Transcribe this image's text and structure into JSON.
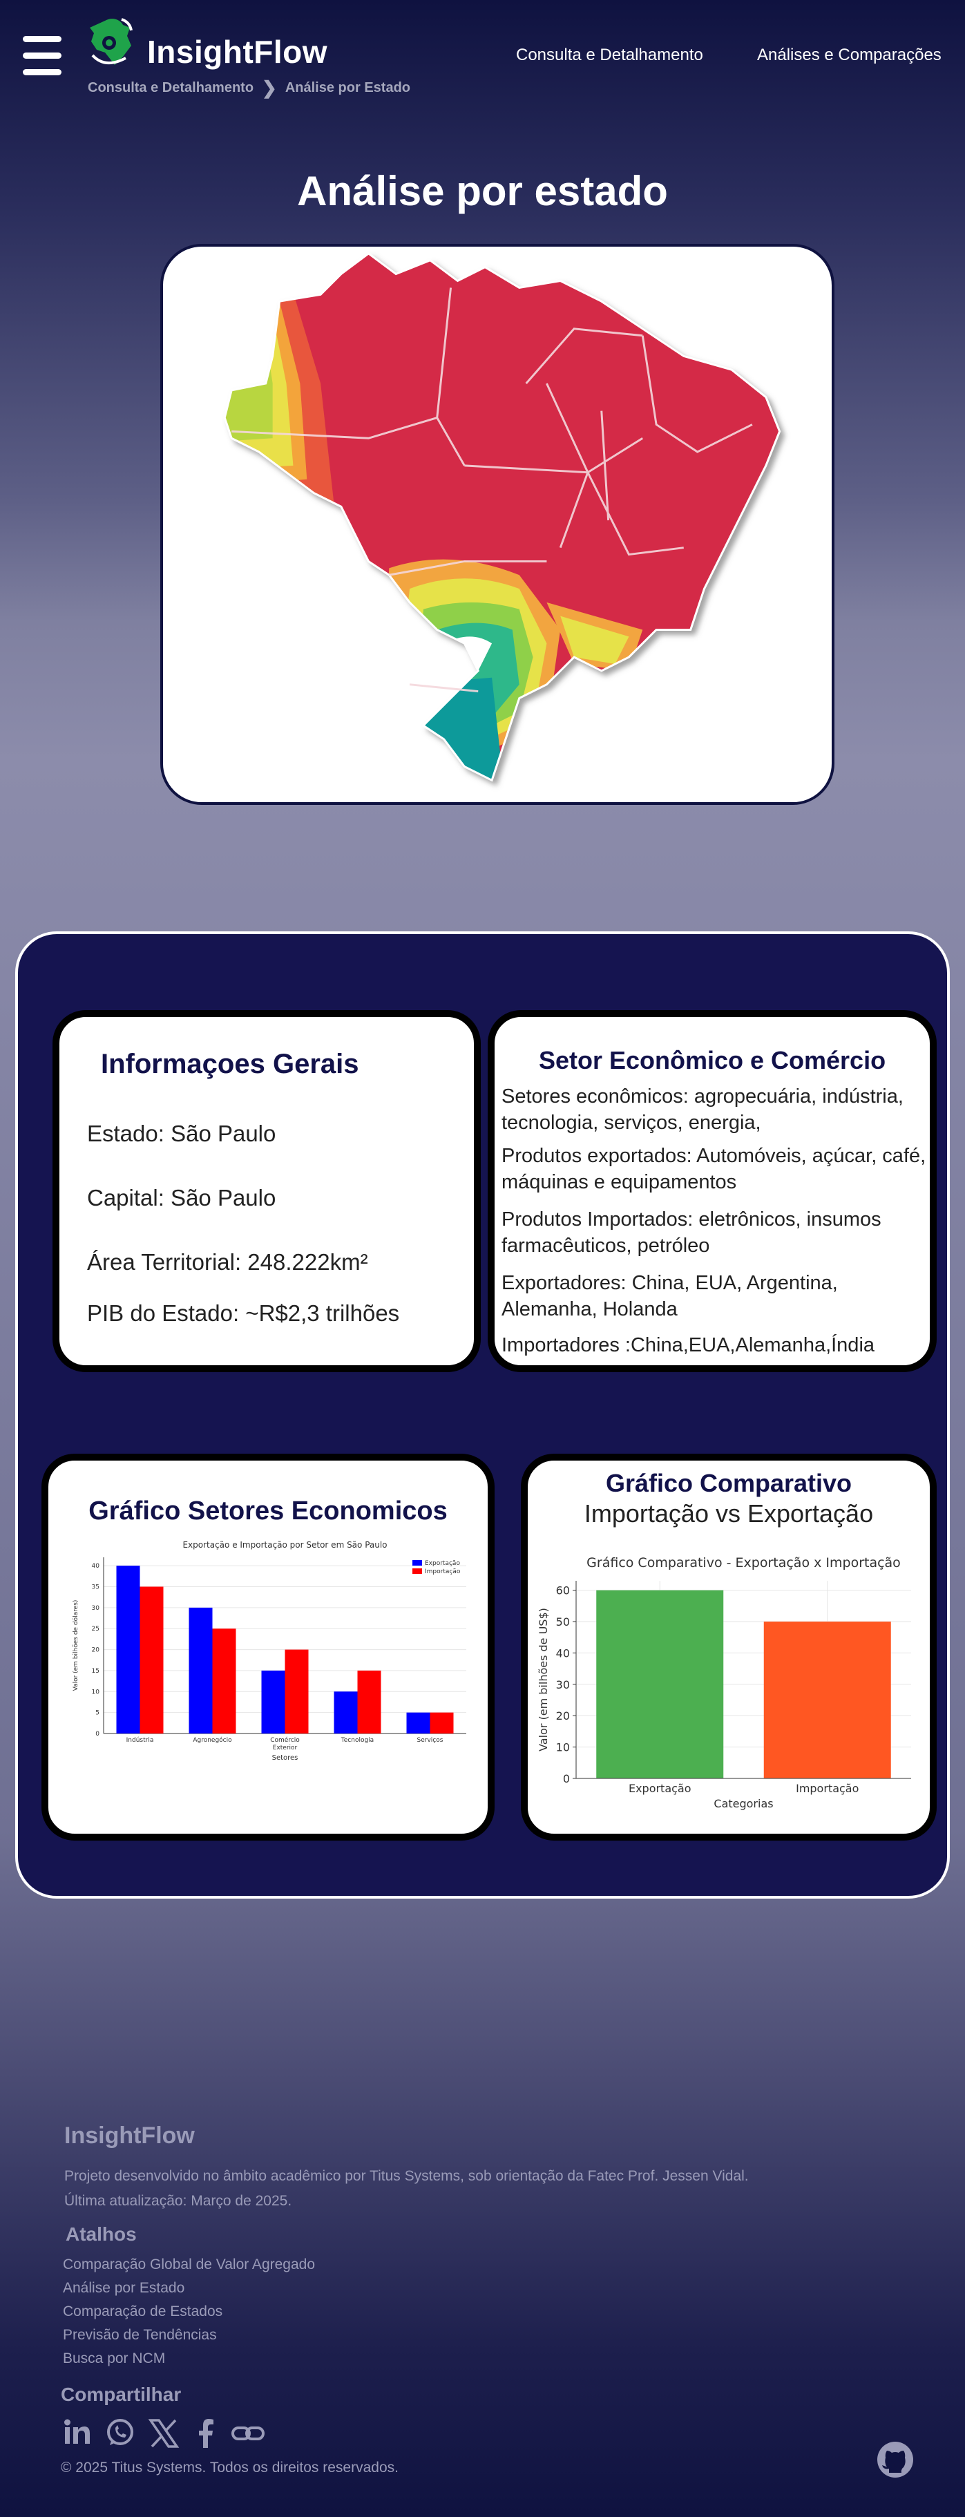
{
  "header": {
    "brand": "InsightFlow",
    "breadcrumb": [
      "Consulta e Detalhamento",
      "Análise por Estado"
    ],
    "nav": [
      "Consulta e Detalhamento",
      "Análises e Comparações"
    ]
  },
  "page": {
    "title": "Análise por estado"
  },
  "info": {
    "title": "Informaçoes Gerais",
    "lines": [
      "Estado: São Paulo",
      "Capital: São Paulo",
      "Área Territorial: 248.222km²",
      "PIB do Estado: ~R$2,3 trilhões"
    ]
  },
  "sector": {
    "title": "Setor Econômico e Comércio",
    "paragraphs": [
      " Setores econômicos: agropecuária, indústria, tecnologia, serviços, energia,",
      "Produtos exportados: Automóveis, açúcar, café, máquinas e equipamentos",
      "Produtos Importados: eletrônicos, insumos farmacêuticos, petróleo",
      " Exportadores: China, EUA, Argentina, Alemanha, Holanda",
      "Importadores :China,EUA,Alemanha,Índia"
    ]
  },
  "chart_sectors": {
    "card_title": "Gráfico Setores Economicos"
  },
  "chart_compare": {
    "card_title": "Gráfico Comparativo",
    "card_subtitle": "Importação vs Exportação"
  },
  "chart_data": [
    {
      "type": "bar",
      "title": "Exportação e Importação por Setor em São Paulo",
      "xlabel": "Setores",
      "ylabel": "Valor (em bilhões de dólares)",
      "categories": [
        "Indústria",
        "Agronegócio",
        "Comércio Exterior",
        "Tecnologia",
        "Serviços"
      ],
      "series": [
        {
          "name": "Exportação",
          "values": [
            40,
            30,
            15,
            10,
            5
          ],
          "color": "#0000ff"
        },
        {
          "name": "Importação",
          "values": [
            35,
            25,
            20,
            15,
            5
          ],
          "color": "#ff0000"
        }
      ],
      "ylim": [
        0,
        42
      ],
      "yticks": [
        0,
        5,
        10,
        15,
        20,
        25,
        30,
        35,
        40
      ],
      "legend": "top-right",
      "grid": true
    },
    {
      "type": "bar",
      "title": "Gráfico Comparativo - Exportação x Importação",
      "xlabel": "Categorias",
      "ylabel": "Valor (em bilhões de US$)",
      "categories": [
        "Exportação",
        "Importação"
      ],
      "values": [
        60,
        50
      ],
      "colors": [
        "#4caf50",
        "#ff5722"
      ],
      "ylim": [
        0,
        63
      ],
      "yticks": [
        0,
        10,
        20,
        30,
        40,
        50,
        60
      ],
      "grid": true
    }
  ],
  "footer": {
    "brand": "InsightFlow",
    "description": "Projeto desenvolvido no âmbito acadêmico por Titus Systems, sob orientação da Fatec Prof. Jessen Vidal.",
    "updated": "Última atualização: Março de 2025.",
    "shortcuts_title": "Atalhos",
    "shortcuts": [
      "Comparação Global de Valor Agregado",
      "Análise por Estado",
      "Comparação de Estados",
      "Previsão de Tendências",
      "Busca por NCM"
    ],
    "share_title": "Compartilhar",
    "copyright": "© 2025 Titus Systems. Todos os direitos reservados."
  }
}
